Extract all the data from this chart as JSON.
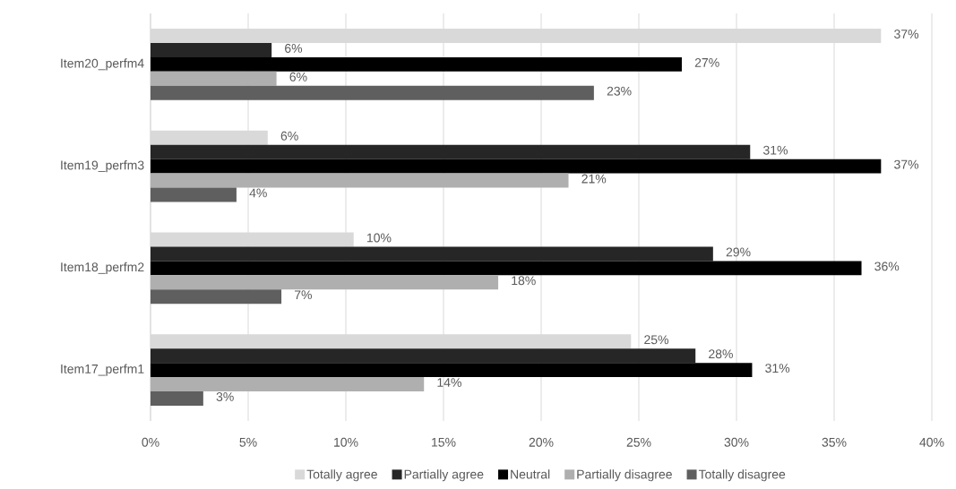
{
  "chart_data": {
    "type": "bar",
    "orientation": "horizontal",
    "categories": [
      "Item20_perfm4",
      "Item19_perfm3",
      "Item18_perfm2",
      "Item17_perfm1"
    ],
    "series": [
      {
        "name": "Totally agree",
        "color": "#d9d9d9",
        "values": [
          37.4,
          6.0,
          10.4,
          24.6
        ],
        "value_labels": [
          "37%",
          "6%",
          "10%",
          "25%"
        ]
      },
      {
        "name": "Partially agree",
        "color": "#262626",
        "values": [
          6.2,
          30.7,
          28.8,
          27.9
        ],
        "value_labels": [
          "6%",
          "31%",
          "29%",
          "28%"
        ]
      },
      {
        "name": "Neutral",
        "color": "#000000",
        "values": [
          27.2,
          37.4,
          36.4,
          30.8
        ],
        "value_labels": [
          "27%",
          "37%",
          "36%",
          "31%"
        ]
      },
      {
        "name": "Partially disagree",
        "color": "#afafaf",
        "values": [
          6.45,
          21.4,
          17.8,
          14.0
        ],
        "value_labels": [
          "6%",
          "21%",
          "18%",
          "14%"
        ]
      },
      {
        "name": "Totally disagree",
        "color": "#5f5f5f",
        "values": [
          22.7,
          4.4,
          6.7,
          2.7
        ],
        "value_labels": [
          "23%",
          "4%",
          "7%",
          "3%"
        ]
      }
    ],
    "xlim": [
      0,
      40
    ],
    "xticks": [
      {
        "value": 0,
        "label": "0%"
      },
      {
        "value": 5,
        "label": "5%"
      },
      {
        "value": 10,
        "label": "10%"
      },
      {
        "value": 15,
        "label": "15%"
      },
      {
        "value": 20,
        "label": "20%"
      },
      {
        "value": 25,
        "label": "25%"
      },
      {
        "value": 30,
        "label": "30%"
      },
      {
        "value": 35,
        "label": "35%"
      },
      {
        "value": 40,
        "label": "40%"
      }
    ],
    "grid": "x",
    "legend": "bottom"
  }
}
